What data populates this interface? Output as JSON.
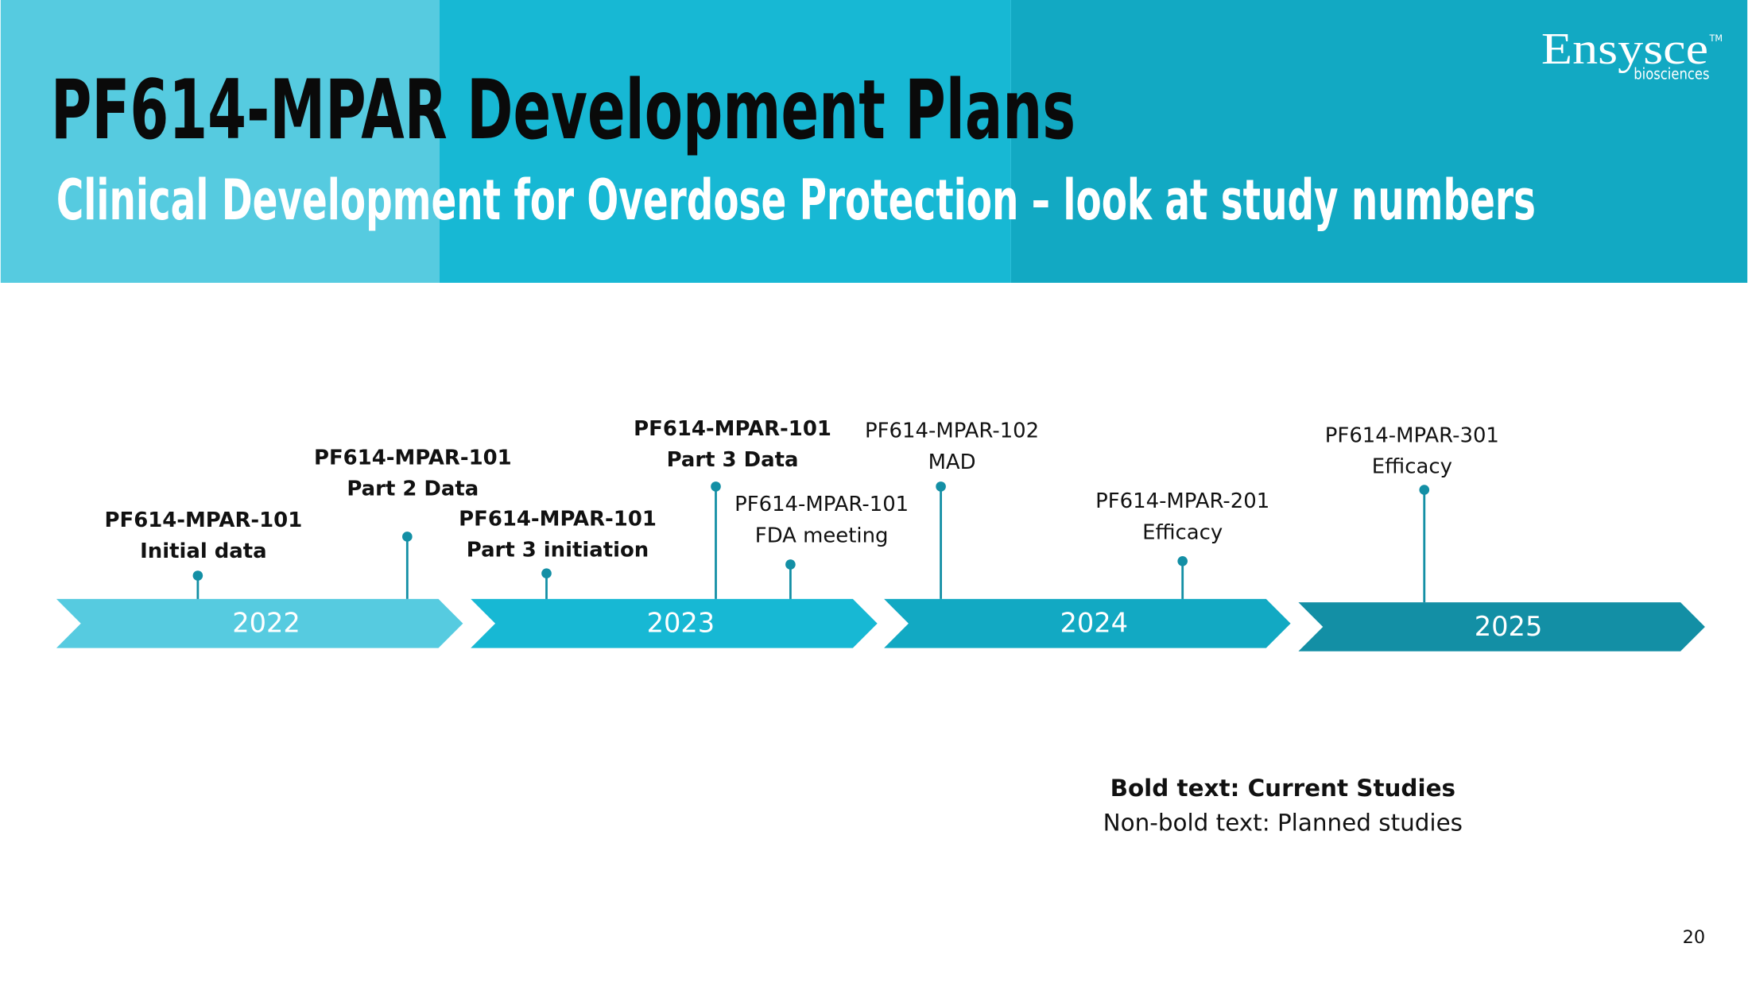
{
  "header": {
    "title": "PF614-MPAR Development Plans",
    "subtitle": "Clinical Development for Overdose Protection – look at study numbers"
  },
  "logo": {
    "name": "Ensysce",
    "tm": "TM",
    "tagline": "biosciences"
  },
  "timeline": {
    "years": [
      "2022",
      "2023",
      "2024",
      "2025"
    ],
    "milestones": [
      {
        "lines": [
          "PF614-MPAR-101",
          "Initial data"
        ],
        "bold": true
      },
      {
        "lines": [
          "PF614-MPAR-101",
          "Part 2 Data"
        ],
        "bold": true
      },
      {
        "lines": [
          "PF614-MPAR-101",
          "Part 3 initiation"
        ],
        "bold": true
      },
      {
        "lines": [
          "PF614-MPAR-101",
          "Part 3 Data"
        ],
        "bold": true
      },
      {
        "lines": [
          "PF614-MPAR-101",
          "FDA meeting"
        ],
        "bold": false
      },
      {
        "lines": [
          "PF614-MPAR-102",
          "MAD"
        ],
        "bold": false
      },
      {
        "lines": [
          "PF614-MPAR-201",
          "Efficacy"
        ],
        "bold": false
      },
      {
        "lines": [
          "PF614-MPAR-301",
          "Efficacy"
        ],
        "bold": false
      }
    ]
  },
  "legend": {
    "bold_line": "Bold text: Current Studies",
    "normal_line": "Non-bold text: Planned studies"
  },
  "page_number": "20"
}
